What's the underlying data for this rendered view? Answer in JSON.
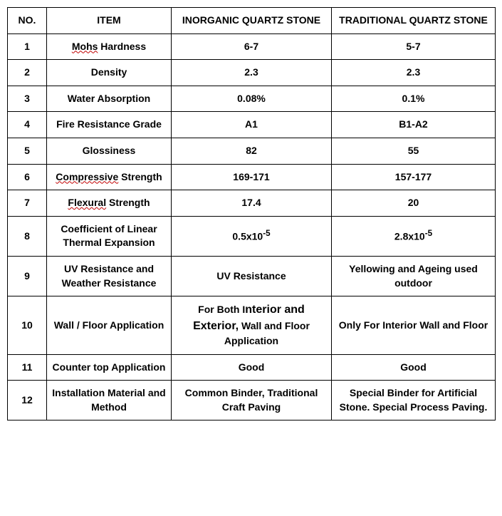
{
  "table": {
    "headers": {
      "no": "NO.",
      "item": "ITEM",
      "inorganic": "INORGANIC QUARTZ STONE",
      "traditional": "TRADITIONAL QUARTZ STONE"
    },
    "rows": [
      {
        "no": "1",
        "item_pre": "",
        "item_sq": "Mohs",
        "item_post": " Hardness",
        "inorg": "6-7",
        "trad": "5-7"
      },
      {
        "no": "2",
        "item_pre": "Density",
        "item_sq": "",
        "item_post": "",
        "inorg": "2.3",
        "trad": "2.3"
      },
      {
        "no": "3",
        "item_pre": "Water Absorption",
        "item_sq": "",
        "item_post": "",
        "inorg": "0.08%",
        "trad": "0.1%"
      },
      {
        "no": "4",
        "item_pre": "Fire Resistance Grade",
        "item_sq": "",
        "item_post": "",
        "inorg": "A1",
        "trad": "B1-A2"
      },
      {
        "no": "5",
        "item_pre": "Glossiness",
        "item_sq": "",
        "item_post": "",
        "inorg": "82",
        "trad": "55"
      },
      {
        "no": "6",
        "item_pre": "",
        "item_sq": "Compressive",
        "item_post": " Strength",
        "inorg": "169-171",
        "trad": "157-177"
      },
      {
        "no": "7",
        "item_pre": "",
        "item_sq": "Flexural",
        "item_post": " Strength",
        "inorg": "17.4",
        "trad": "20"
      },
      {
        "no": "8",
        "item_pre": "Coefficient of Linear Thermal Expansion",
        "item_sq": "",
        "item_post": "",
        "inorg_base": "0.5x10",
        "inorg_sup": "-5",
        "trad_base": "2.8x10",
        "trad_sup": "-5"
      },
      {
        "no": "9",
        "item_pre": "UV Resistance and Weather Resistance",
        "item_sq": "",
        "item_post": "",
        "inorg": "UV Resistance",
        "trad": "Yellowing and Ageing used outdoor"
      },
      {
        "no": "10",
        "item_pre": "Wall / Floor Application",
        "item_sq": "",
        "item_post": "",
        "inorg_html": "For Both I<span style='font-size:16px'>nterior and Exterior,</span> Wall and Floor Application",
        "trad": "Only For Interior Wall and Floor"
      },
      {
        "no": "11",
        "item_pre": "Counter top Application",
        "item_sq": "",
        "item_post": "",
        "inorg": "Good",
        "trad": "Good"
      },
      {
        "no": "12",
        "item_pre": "Installation Material and Method",
        "item_sq": "",
        "item_post": "",
        "inorg": "Common Binder, Traditional Craft Paving",
        "trad": "Special Binder for Artificial Stone. Special Process Paving."
      }
    ],
    "style": {
      "border_color": "#000000",
      "background_color": "#ffffff",
      "text_color": "#000000",
      "squiggle_color": "#c00000",
      "font_size": 14,
      "col_widths": {
        "no": 55,
        "item": 175,
        "inorganic": 225,
        "traditional": 230
      },
      "type": "table"
    }
  }
}
